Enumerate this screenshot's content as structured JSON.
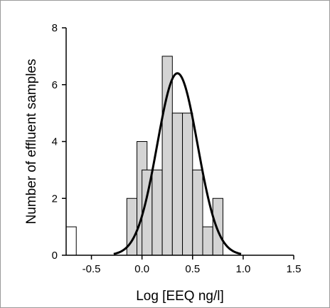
{
  "chart_data": {
    "type": "bar",
    "title": "",
    "xlabel": "Log [EEQ ng/l]",
    "ylabel": "Number of effluent samples",
    "xlim": [
      -0.75,
      1.5
    ],
    "ylim": [
      0,
      8
    ],
    "x_ticks": [
      "-0.5",
      "0.0",
      "0.5",
      "1.0",
      "1.5"
    ],
    "y_ticks": [
      "0",
      "2",
      "4",
      "6",
      "8"
    ],
    "bin_width": 0.1,
    "grid": false,
    "legend": "none",
    "bins": [
      {
        "x": -0.7,
        "value": 1,
        "fill": "#ffffff"
      },
      {
        "x": -0.1,
        "value": 2,
        "fill": "#d4d4d4"
      },
      {
        "x": 0.0,
        "value": 4,
        "fill": "#d4d4d4"
      },
      {
        "x": 0.05,
        "value": 3,
        "fill": "#d4d4d4"
      },
      {
        "x": 0.15,
        "value": 3,
        "fill": "#d4d4d4"
      },
      {
        "x": 0.25,
        "value": 7,
        "fill": "#d4d4d4"
      },
      {
        "x": 0.35,
        "value": 5,
        "fill": "#d4d4d4"
      },
      {
        "x": 0.45,
        "value": 5,
        "fill": "#d4d4d4"
      },
      {
        "x": 0.55,
        "value": 3,
        "fill": "#d4d4d4"
      },
      {
        "x": 0.65,
        "value": 1,
        "fill": "#d4d4d4"
      },
      {
        "x": 0.75,
        "value": 2,
        "fill": "#d4d4d4"
      }
    ],
    "fit_curve": {
      "type": "gaussian",
      "mean": 0.35,
      "sd": 0.2,
      "peak": 6.4,
      "color": "#000000"
    }
  }
}
